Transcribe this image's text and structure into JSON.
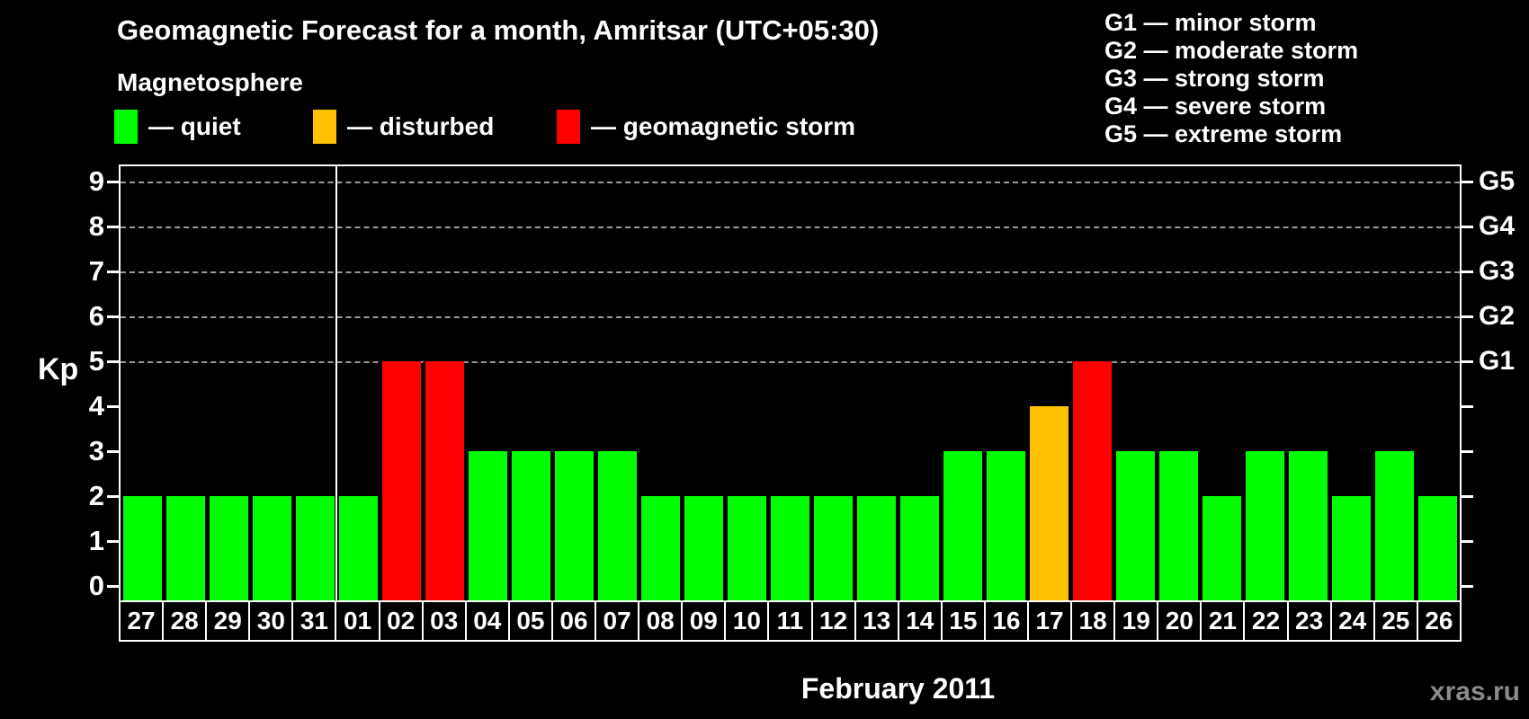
{
  "title": "Geomagnetic Forecast for a month, Amritsar (UTC+05:30)",
  "legend": {
    "heading": "Magnetosphere",
    "items": [
      {
        "status": "quiet",
        "label": "— quiet",
        "color": "#00ff00"
      },
      {
        "status": "disturbed",
        "label": "— disturbed",
        "color": "#ffc000"
      },
      {
        "status": "storm",
        "label": "— geomagnetic storm",
        "color": "#ff0000"
      }
    ]
  },
  "storm_scale_legend": [
    "G1 — minor storm",
    "G2 — moderate storm",
    "G3 — strong storm",
    "G4 — severe storm",
    "G5 — extreme storm"
  ],
  "watermark": "xras.ru",
  "chart_data": {
    "type": "bar",
    "title": "Geomagnetic Forecast for a month, Amritsar (UTC+05:30)",
    "xlabel": "February 2011",
    "ylabel": "Kp",
    "ylim": [
      0,
      9
    ],
    "y_ticks": [
      0,
      1,
      2,
      3,
      4,
      5,
      6,
      7,
      8,
      9
    ],
    "gridlines_at": [
      5,
      6,
      7,
      8,
      9
    ],
    "grid": "dashed horizontal lines at storm levels G1–G5",
    "legend_position": "top",
    "month_boundary_index": 5,
    "categories": [
      "27",
      "28",
      "29",
      "30",
      "31",
      "01",
      "02",
      "03",
      "04",
      "05",
      "06",
      "07",
      "08",
      "09",
      "10",
      "11",
      "12",
      "13",
      "14",
      "15",
      "16",
      "17",
      "18",
      "19",
      "20",
      "21",
      "22",
      "23",
      "24",
      "25",
      "26"
    ],
    "values": [
      2,
      2,
      2,
      2,
      2,
      2,
      5,
      5,
      3,
      3,
      3,
      3,
      2,
      2,
      2,
      2,
      2,
      2,
      2,
      3,
      3,
      4,
      5,
      3,
      3,
      2,
      3,
      3,
      2,
      3,
      2
    ],
    "statuses": [
      "quiet",
      "quiet",
      "quiet",
      "quiet",
      "quiet",
      "quiet",
      "storm",
      "storm",
      "quiet",
      "quiet",
      "quiet",
      "quiet",
      "quiet",
      "quiet",
      "quiet",
      "quiet",
      "quiet",
      "quiet",
      "quiet",
      "quiet",
      "quiet",
      "disturbed",
      "storm",
      "quiet",
      "quiet",
      "quiet",
      "quiet",
      "quiet",
      "quiet",
      "quiet",
      "quiet"
    ],
    "right_axis_labels": [
      {
        "level": 5,
        "label": "G1"
      },
      {
        "level": 6,
        "label": "G2"
      },
      {
        "level": 7,
        "label": "G3"
      },
      {
        "level": 8,
        "label": "G4"
      },
      {
        "level": 9,
        "label": "G5"
      }
    ]
  }
}
